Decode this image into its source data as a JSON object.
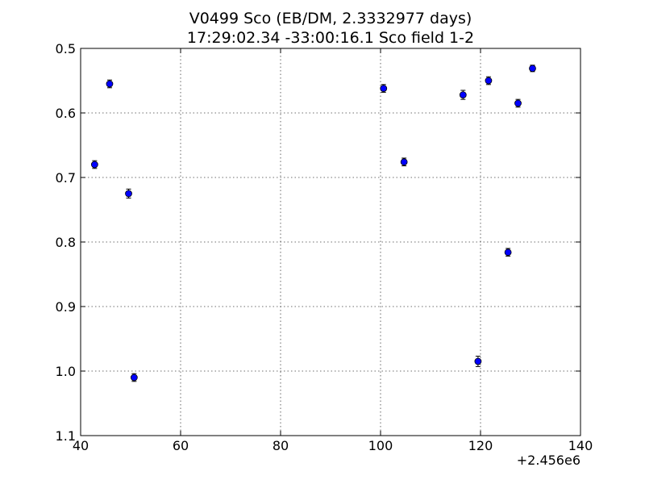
{
  "chart_data": {
    "type": "scatter",
    "title": "V0499 Sco (EB/DM, 2.3332977 days)",
    "subtitle": "17:29:02.34 -33:00:16.1 Sco field 1-2",
    "xlabel": "",
    "ylabel": "",
    "x_offset_label": "+2.456e6",
    "xlim": [
      40,
      140
    ],
    "ylim": [
      0.5,
      1.1
    ],
    "y_inverted": true,
    "grid": true,
    "x_ticks": [
      40,
      60,
      80,
      100,
      120,
      140
    ],
    "x_tick_labels": [
      "40",
      "60",
      "80",
      "100",
      "120",
      "140"
    ],
    "y_ticks": [
      0.5,
      0.6,
      0.7,
      0.8,
      0.9,
      1.0,
      1.1
    ],
    "y_tick_labels": [
      "0.5",
      "0.6",
      "0.7",
      "0.8",
      "0.9",
      "1.0",
      "1.1"
    ],
    "marker_color": "#0000ff",
    "series": [
      {
        "points": [
          {
            "x": 42.8,
            "y": 0.68,
            "err": 0.006
          },
          {
            "x": 45.8,
            "y": 0.555,
            "err": 0.006
          },
          {
            "x": 49.6,
            "y": 0.725,
            "err": 0.007
          },
          {
            "x": 50.7,
            "y": 1.01,
            "err": 0.006
          },
          {
            "x": 100.6,
            "y": 0.562,
            "err": 0.006
          },
          {
            "x": 104.7,
            "y": 0.676,
            "err": 0.006
          },
          {
            "x": 116.5,
            "y": 0.572,
            "err": 0.007
          },
          {
            "x": 119.5,
            "y": 0.985,
            "err": 0.008
          },
          {
            "x": 121.6,
            "y": 0.55,
            "err": 0.006
          },
          {
            "x": 125.5,
            "y": 0.816,
            "err": 0.006
          },
          {
            "x": 127.5,
            "y": 0.585,
            "err": 0.006
          },
          {
            "x": 130.4,
            "y": 0.531,
            "err": 0.005
          }
        ]
      }
    ]
  }
}
